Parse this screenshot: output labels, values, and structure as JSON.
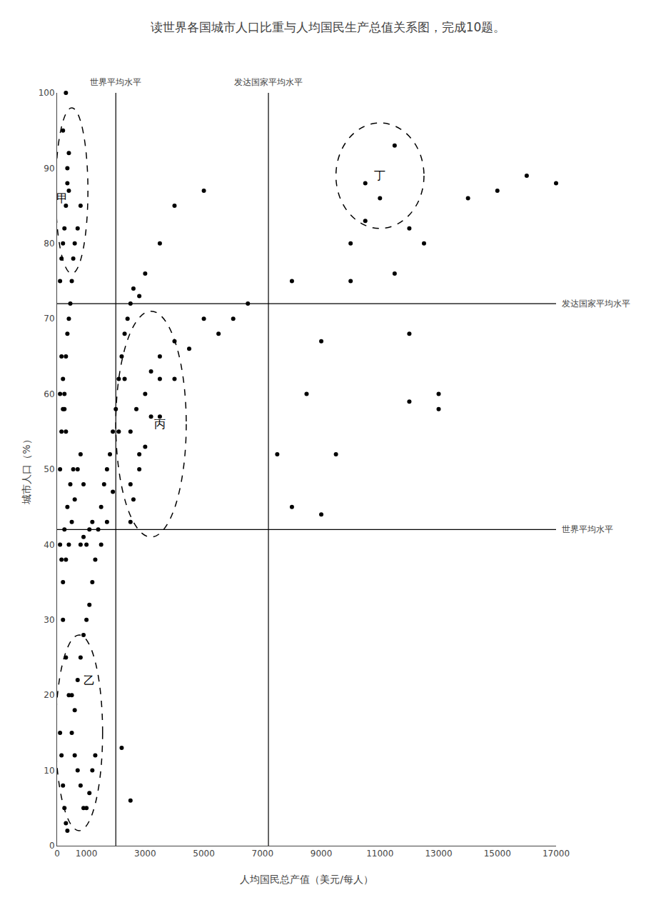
{
  "chart_data": {
    "type": "scatter",
    "title": "读世界各国城市人口比重与人均国民生产总值关系图，完成10题。",
    "x_label": "人均国民总产值（美元/每人）",
    "y_label": "城市人口（%）",
    "color": "black",
    "marker": "circle",
    "grid": false,
    "xlim": [
      0,
      17000
    ],
    "xticks": [
      0,
      1000,
      3000,
      5000,
      7000,
      9000,
      11000,
      13000,
      15000,
      17000
    ],
    "ylim": [
      0,
      100
    ],
    "yticks": [
      0,
      10,
      20,
      30,
      40,
      50,
      60,
      70,
      80,
      90,
      100
    ],
    "x": [
      100,
      150,
      200,
      250,
      300,
      350,
      400,
      450,
      500,
      550,
      600,
      700,
      800,
      900,
      100,
      150,
      200,
      250,
      300,
      350,
      400,
      450,
      500,
      550,
      600,
      700,
      800,
      200,
      300,
      400,
      500,
      600,
      700,
      800,
      900,
      1000,
      1100,
      1200,
      1300,
      100,
      150,
      200,
      250,
      300,
      350,
      500,
      600,
      700,
      800,
      900,
      1000,
      1100,
      1200,
      1300,
      1400,
      1500,
      1600,
      1700,
      1800,
      1900,
      2000,
      2100,
      2200,
      2300,
      2400,
      2500,
      2600,
      2800,
      1500,
      1700,
      1900,
      2100,
      2300,
      800,
      900,
      1000,
      1100,
      1200,
      100,
      150,
      200,
      250,
      300,
      100,
      150,
      200,
      250,
      300,
      350,
      400,
      200,
      300,
      350,
      400,
      2500,
      2700,
      3000,
      3200,
      3500,
      2500,
      2800,
      3200,
      3500,
      4000,
      2500,
      2600,
      2800,
      3000,
      3500,
      4000,
      4500,
      5000,
      3000,
      3500,
      4000,
      5000,
      5500,
      6000,
      6500,
      2200,
      2500,
      7500,
      8000,
      8500,
      9000,
      9500,
      10000,
      10500,
      10500,
      11000,
      11500,
      11500,
      12000,
      12000,
      12500,
      13000,
      13000,
      14000,
      15000,
      16000,
      17000,
      8000,
      9000,
      10000,
      12000
    ],
    "values": [
      40,
      38,
      35,
      42,
      38,
      45,
      40,
      48,
      43,
      50,
      46,
      50,
      52,
      48,
      50,
      55,
      58,
      60,
      65,
      68,
      70,
      72,
      75,
      78,
      80,
      82,
      85,
      30,
      25,
      20,
      15,
      12,
      10,
      8,
      5,
      5,
      7,
      10,
      12,
      15,
      12,
      8,
      5,
      3,
      2,
      20,
      18,
      22,
      25,
      28,
      30,
      32,
      35,
      38,
      42,
      45,
      48,
      50,
      52,
      55,
      58,
      62,
      65,
      68,
      70,
      72,
      74,
      73,
      40,
      43,
      47,
      55,
      62,
      40,
      41,
      40,
      42,
      43,
      60,
      65,
      62,
      58,
      55,
      75,
      78,
      80,
      82,
      85,
      88,
      92,
      95,
      100,
      90,
      87,
      55,
      58,
      60,
      63,
      65,
      48,
      52,
      57,
      62,
      67,
      43,
      46,
      50,
      53,
      57,
      62,
      66,
      70,
      76,
      80,
      85,
      87,
      68,
      70,
      72,
      13,
      6,
      52,
      45,
      60,
      44,
      52,
      80,
      83,
      88,
      86,
      93,
      76,
      82,
      68,
      80,
      60,
      58,
      86,
      87,
      89,
      88,
      75,
      67,
      75,
      59
    ],
    "reference_lines": [
      {
        "axis": "y",
        "value": 72,
        "label": "发达国家平均水平"
      },
      {
        "axis": "y",
        "value": 42,
        "label": "世界平均水平"
      },
      {
        "axis": "x",
        "value": 2000,
        "label": "世界平均水平"
      },
      {
        "axis": "x",
        "value": 7200,
        "label": "发达国家平均水平"
      }
    ],
    "annotations": [
      {
        "text": "甲",
        "x": 170,
        "y": 86,
        "region": [
          -50,
          1050,
          76,
          98
        ]
      },
      {
        "text": "乙",
        "x": 1100,
        "y": 22,
        "region": [
          -50,
          1550,
          2,
          28
        ]
      },
      {
        "text": "丙",
        "x": 3500,
        "y": 56,
        "region": [
          2000,
          4400,
          41,
          71
        ]
      },
      {
        "text": "丁",
        "x": 11000,
        "y": 89,
        "region": [
          9500,
          12500,
          82,
          96
        ]
      }
    ]
  }
}
